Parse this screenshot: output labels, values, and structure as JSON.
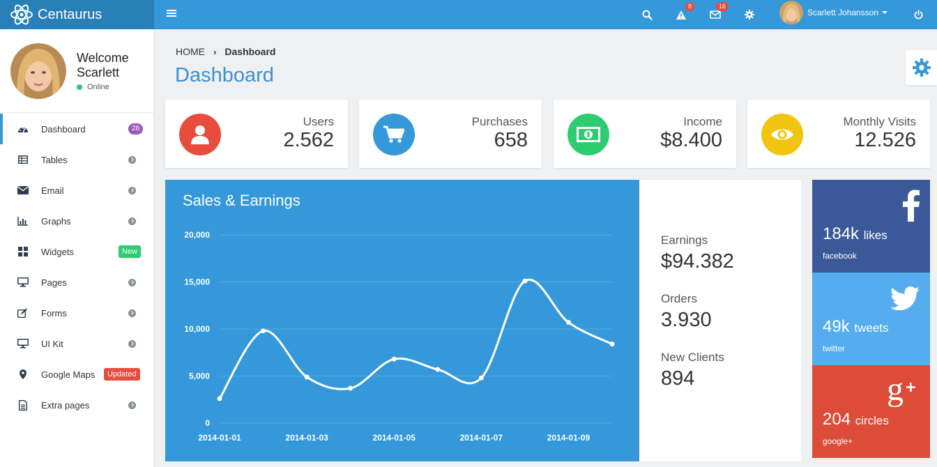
{
  "app": {
    "name": "Centaurus"
  },
  "topbar": {
    "alerts_count": "8",
    "messages_count": "16",
    "user_name": "Scarlett Johansson"
  },
  "sidebar": {
    "welcome": "Welcome",
    "first_name": "Scarlett",
    "status": "Online",
    "items": [
      {
        "label": "Dashboard",
        "icon": "dashboard-icon",
        "badge": "28",
        "badge_color": "#9b59b6",
        "active": true
      },
      {
        "label": "Tables",
        "icon": "table-icon"
      },
      {
        "label": "Email",
        "icon": "envelope-icon"
      },
      {
        "label": "Graphs",
        "icon": "bar-chart-icon"
      },
      {
        "label": "Widgets",
        "icon": "grid-icon",
        "badge": "New",
        "badge_color": "#2ecc71"
      },
      {
        "label": "Pages",
        "icon": "desktop-icon"
      },
      {
        "label": "Forms",
        "icon": "edit-icon"
      },
      {
        "label": "UI Kit",
        "icon": "desktop-icon"
      },
      {
        "label": "Google Maps",
        "icon": "map-marker-icon",
        "badge": "Updated",
        "badge_color": "#e74c3c"
      },
      {
        "label": "Extra pages",
        "icon": "file-icon"
      }
    ]
  },
  "breadcrumb": {
    "home": "HOME",
    "current": "Dashboard"
  },
  "page_title": "Dashboard",
  "stats": [
    {
      "label": "Users",
      "value": "2.562",
      "color": "#e74c3c",
      "icon": "user-icon"
    },
    {
      "label": "Purchases",
      "value": "658",
      "color": "#3498db",
      "icon": "shopping-cart-icon"
    },
    {
      "label": "Income",
      "value": "$8.400",
      "color": "#2ecc71",
      "icon": "money-icon"
    },
    {
      "label": "Monthly Visits",
      "value": "12.526",
      "color": "#f1c40f",
      "icon": "eye-icon"
    }
  ],
  "sales": {
    "title": "Sales & Earnings",
    "earnings_label": "Earnings",
    "earnings_value": "$94.382",
    "orders_label": "Orders",
    "orders_value": "3.930",
    "clients_label": "New Clients",
    "clients_value": "894"
  },
  "chart_data": {
    "type": "line",
    "title": "Sales & Earnings",
    "x": [
      "2014-01-01",
      "2014-01-02",
      "2014-01-03",
      "2014-01-04",
      "2014-01-05",
      "2014-01-06",
      "2014-01-07",
      "2014-01-08",
      "2014-01-09",
      "2014-01-10"
    ],
    "x_tick_labels": [
      "2014-01-01",
      "2014-01-03",
      "2014-01-05",
      "2014-01-07",
      "2014-01-09"
    ],
    "y_tick_labels": [
      "20,000",
      "15,000",
      "10,000",
      "5,000",
      "0"
    ],
    "series": [
      {
        "values": [
          2600,
          9800,
          4900,
          3700,
          6800,
          5700,
          4800,
          15100,
          10700,
          8400
        ]
      }
    ],
    "ylim": [
      0,
      20000
    ],
    "grid": true
  },
  "social": [
    {
      "count": "184k",
      "unit": "likes",
      "network": "facebook",
      "color": "#3b5998",
      "icon": "facebook-icon"
    },
    {
      "count": "49k",
      "unit": "tweets",
      "network": "twitter",
      "color": "#55acee",
      "icon": "twitter-icon"
    },
    {
      "count": "204",
      "unit": "circles",
      "network": "google+",
      "color": "#dd4b39",
      "icon": "google-plus-icon"
    }
  ]
}
